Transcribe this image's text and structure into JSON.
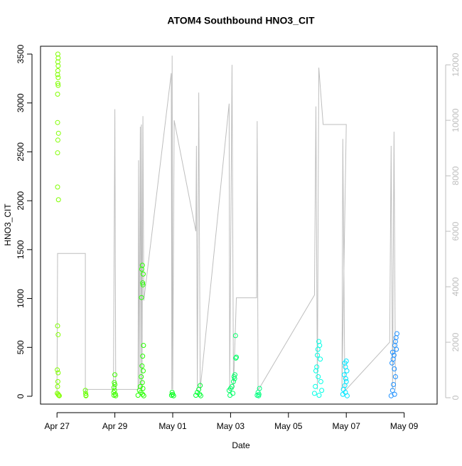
{
  "chart_data": {
    "type": "scatter",
    "title": "ATOM4 Southbound HNO3_CIT",
    "x_label": "Date",
    "y_label": "HNO3_CIT",
    "xlim": [
      -0.57,
      13.14
    ],
    "xticks": [
      {
        "value": 0,
        "label": "Apr 27"
      },
      {
        "value": 2,
        "label": "Apr 29"
      },
      {
        "value": 4,
        "label": "May 01"
      },
      {
        "value": 6,
        "label": "May 03"
      },
      {
        "value": 8,
        "label": "May 05"
      },
      {
        "value": 10,
        "label": "May 07"
      },
      {
        "value": 12,
        "label": "May 09"
      }
    ],
    "ylim": [
      -80,
      3580
    ],
    "yticks": [
      0,
      500,
      1000,
      1500,
      2000,
      2500,
      3000,
      3500
    ],
    "y2lim": [
      -230,
      12670
    ],
    "y2ticks": [
      0,
      2000,
      4000,
      6000,
      8000,
      10000,
      12000
    ],
    "y2color": "#bebebe",
    "series": [
      {
        "color": "#80FF00",
        "x": [
          0.03,
          0.04,
          0.03,
          0.04,
          0.03,
          0.02,
          0.04,
          0.03,
          0.04,
          0.02,
          0.02,
          0.05,
          0.03,
          0.02,
          0.02,
          0.05,
          0.02,
          0.04,
          0.01,
          0.04,
          0.03,
          0.02,
          0.01,
          0.04,
          0.06,
          0.08
        ],
        "values": [
          3500,
          3460,
          3420,
          3380,
          3330,
          3290,
          3260,
          3200,
          3180,
          3090,
          2800,
          2690,
          2620,
          2490,
          2140,
          2010,
          720,
          630,
          270,
          240,
          150,
          100,
          30,
          20,
          10,
          5
        ]
      },
      {
        "color": "#66FF00",
        "x": [
          0.98,
          0.99,
          1.0,
          1.0
        ],
        "values": [
          60,
          30,
          10,
          5
        ]
      },
      {
        "color": "#40FF00",
        "x": [
          2.0,
          1.98,
          2.0,
          1.97,
          1.99,
          1.96,
          2.02,
          1.97,
          2.03
        ],
        "values": [
          220,
          140,
          120,
          90,
          60,
          40,
          20,
          10,
          5
        ]
      },
      {
        "color": "#26FF00",
        "x": [
          2.95,
          2.93,
          2.98,
          2.96,
          2.97,
          2.92,
          2.99,
          2.96,
          2.94,
          2.98,
          2.91,
          2.95,
          2.88,
          2.97,
          2.85,
          2.9,
          2.96,
          2.8,
          3.0
        ],
        "values": [
          1340,
          1300,
          1250,
          1160,
          1140,
          1010,
          520,
          410,
          310,
          260,
          200,
          140,
          100,
          80,
          60,
          40,
          20,
          10,
          5
        ]
      },
      {
        "color": "#00FF19",
        "x": [
          3.98,
          4.0,
          3.96,
          4.03
        ],
        "values": [
          40,
          20,
          10,
          5
        ]
      },
      {
        "color": "#00FF33",
        "x": [
          4.95,
          4.9,
          4.85,
          4.93,
          4.8,
          4.97
        ],
        "values": [
          110,
          70,
          40,
          20,
          10,
          5
        ]
      },
      {
        "color": "#00FF66",
        "x": [
          6.17,
          6.2,
          6.18,
          6.15,
          6.12,
          6.14,
          6.1,
          6.05,
          6.0,
          5.95,
          6.08,
          5.98
        ],
        "values": [
          620,
          400,
          390,
          220,
          200,
          180,
          150,
          100,
          80,
          60,
          30,
          10
        ]
      },
      {
        "color": "#00FF80",
        "x": [
          7.0,
          6.95,
          6.98,
          6.92,
          6.97
        ],
        "values": [
          80,
          40,
          20,
          10,
          5
        ]
      },
      {
        "color": "#00FFE6",
        "x": [
          9.05,
          9.08,
          9.02,
          9.0,
          9.1,
          8.98,
          8.95,
          9.03,
          9.12,
          8.93,
          9.15,
          8.9,
          9.06
        ],
        "values": [
          560,
          520,
          480,
          420,
          380,
          300,
          260,
          200,
          150,
          100,
          60,
          30,
          10
        ]
      },
      {
        "color": "#00E5FF",
        "x": [
          10.0,
          9.95,
          9.97,
          10.02,
          9.93,
          9.98,
          10.0,
          9.95,
          9.9,
          9.97,
          9.88,
          10.03
        ],
        "values": [
          360,
          340,
          300,
          260,
          220,
          180,
          150,
          110,
          70,
          40,
          20,
          5
        ]
      },
      {
        "color": "#1E90FF",
        "x": [
          11.75,
          11.72,
          11.7,
          11.68,
          11.73,
          11.6,
          11.65,
          11.62,
          11.58,
          11.66,
          11.7,
          11.63,
          11.6,
          11.67,
          11.55
        ],
        "values": [
          640,
          600,
          560,
          520,
          480,
          450,
          420,
          380,
          340,
          280,
          200,
          120,
          60,
          20,
          5
        ]
      },
      {
        "type": "line",
        "axis": "y2",
        "color": "#bebebe",
        "x": [
          0.0,
          0.02,
          0.98,
          0.98,
          1.0,
          1.95,
          2.0,
          2.03,
          2.8,
          2.82,
          2.84,
          2.88,
          2.9,
          2.92,
          2.94,
          2.97,
          3.0,
          3.95,
          3.97,
          3.98,
          4.0,
          4.05,
          4.8,
          4.82,
          4.85,
          4.9,
          4.95,
          5.95,
          5.97,
          6.05,
          6.1,
          6.2,
          6.9,
          6.92,
          6.95,
          6.97,
          8.9,
          8.95,
          9.0,
          9.05,
          9.2,
          10.0,
          9.85,
          9.88,
          9.95,
          10.0,
          11.5,
          11.55,
          11.6,
          11.65,
          11.7
        ],
        "values": [
          200,
          5200,
          5200,
          200,
          300,
          300,
          10400,
          300,
          300,
          8560,
          300,
          9770,
          300,
          9850,
          300,
          10150,
          3500,
          11700,
          300,
          12330,
          300,
          10000,
          6000,
          9080,
          300,
          11000,
          300,
          10600,
          300,
          12000,
          300,
          3600,
          3600,
          9970,
          300,
          300,
          3700,
          10500,
          300,
          11900,
          9850,
          9850,
          300,
          9330,
          300,
          300,
          2000,
          9080,
          300,
          9590,
          300
        ]
      }
    ]
  }
}
